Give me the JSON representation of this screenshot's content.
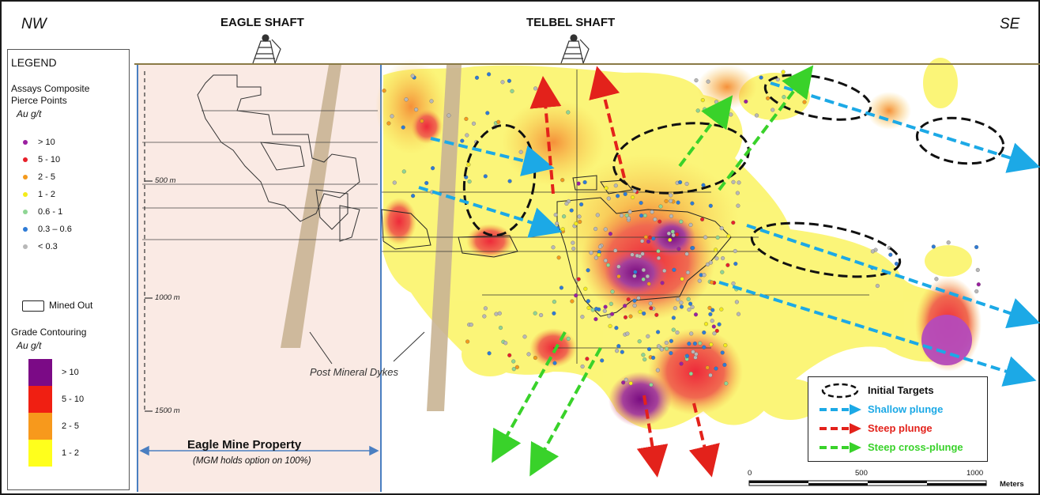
{
  "orientation": {
    "left": "NW",
    "right": "SE"
  },
  "shafts": [
    "EAGLE SHAFT",
    "TELBEL SHAFT"
  ],
  "legend": {
    "title": "LEGEND",
    "assays_heading": [
      "Assays Composite",
      "Pierce Points"
    ],
    "unit": "Au g/t",
    "assay_classes": [
      {
        "label": "> 10",
        "color": "#9b1fa0"
      },
      {
        "label": "5 - 10",
        "color": "#e8202a"
      },
      {
        "label": "2 - 5",
        "color": "#f49a1c"
      },
      {
        "label": "1 - 2",
        "color": "#f4ec1a"
      },
      {
        "label": "0.6 - 1",
        "color": "#8fd694"
      },
      {
        "label": "0.3 – 0.6",
        "color": "#2e7bd6"
      },
      {
        "label": "< 0.3",
        "color": "#b8b8b8"
      }
    ],
    "mined_out": "Mined Out",
    "grade_heading": "Grade Contouring",
    "grade_unit": "Au g/t",
    "grade_classes": [
      {
        "label": "> 10",
        "color": "#7b0a86"
      },
      {
        "label": "5 - 10",
        "color": "#f01f12"
      },
      {
        "label": "2 - 5",
        "color": "#f7991c"
      },
      {
        "label": "1 - 2",
        "color": "#ffff1c"
      }
    ]
  },
  "depth_labels": [
    "500 m",
    "1000 m",
    "1500 m"
  ],
  "property": {
    "title": "Eagle Mine Property",
    "subtitle": "(MGM holds option on 100%)"
  },
  "dykes_label": "Post Mineral Dykes",
  "key": {
    "items": [
      {
        "label": "Initial Targets",
        "color": "#111111"
      },
      {
        "label": "Shallow plunge",
        "color": "#1ca9e6"
      },
      {
        "label": "Steep plunge",
        "color": "#e3221b"
      },
      {
        "label": "Steep cross-plunge",
        "color": "#39d22a"
      }
    ]
  },
  "scale_bar": {
    "ticks": [
      "0",
      "500",
      "1000"
    ],
    "unit": "Meters"
  },
  "colors": {
    "property_fill": "#faeae4",
    "dyke": "#c9b493",
    "surface": "#8a7a46",
    "border": "#1a1a1a"
  }
}
